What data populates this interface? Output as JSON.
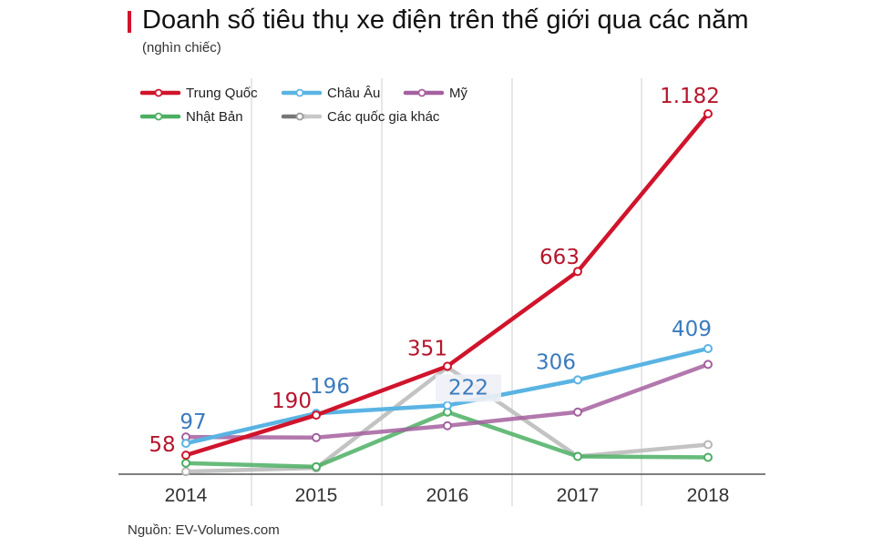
{
  "title": "Doanh số tiêu thụ xe điện trên thế giới qua các năm",
  "subtitle": "(nghìn chiếc)",
  "source": "Nguồn: EV-Volumes.com",
  "chart_data": {
    "type": "line",
    "title": "Doanh số tiêu thụ xe điện trên thế giới qua các năm",
    "subtitle": "(nghìn chiếc)",
    "x": [
      "2014",
      "2015",
      "2016",
      "2017",
      "2018"
    ],
    "ylim": [
      0,
      1200
    ],
    "grid": true,
    "legend_position": "top-left",
    "series": [
      {
        "name": "Trung Quốc",
        "values": [
          58,
          190,
          351,
          663,
          1182
        ],
        "color": "#d0142c",
        "labels": [
          "58",
          "190",
          "351",
          "663",
          "1.182"
        ],
        "label_color": "#b5162d"
      },
      {
        "name": "Châu Âu",
        "values": [
          97,
          196,
          222,
          306,
          409
        ],
        "color": "#5ab4e3",
        "labels": [
          "97",
          "196",
          "222",
          "306",
          "409"
        ],
        "label_color": "#3b7bbd"
      },
      {
        "name": "Mỹ",
        "values": [
          118,
          116,
          155,
          200,
          357
        ],
        "color": "#a4609f",
        "labels": []
      },
      {
        "name": "Nhật Bản",
        "values": [
          32,
          20,
          200,
          54,
          51
        ],
        "color": "#4caf64",
        "labels": []
      },
      {
        "name": "Các quốc gia khác",
        "values": [
          4,
          16,
          348,
          54,
          93
        ],
        "color": "#b8b8b8",
        "labels": []
      }
    ]
  }
}
